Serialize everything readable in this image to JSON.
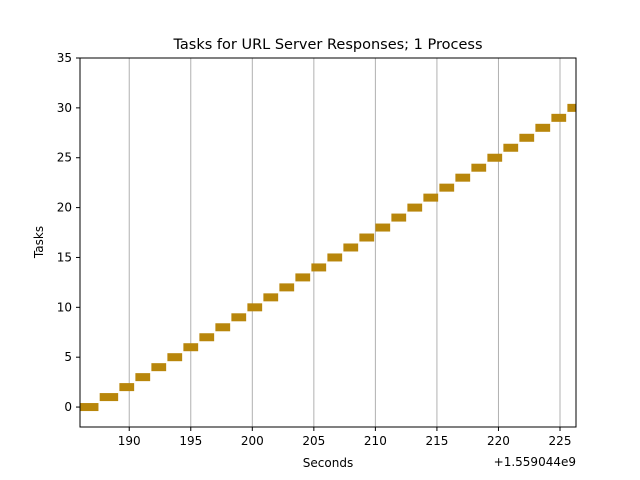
{
  "chart_data": {
    "type": "bar",
    "orientation": "horizontal",
    "title": "Tasks for URL Server Responses; 1 Process",
    "xlabel": "Seconds",
    "ylabel": "Tasks",
    "x_offset_label": "+1.559044e9",
    "xlim": [
      186.0,
      226.3
    ],
    "ylim": [
      -2,
      35
    ],
    "xticks": [
      190,
      195,
      200,
      205,
      210,
      215,
      220,
      225
    ],
    "yticks": [
      0,
      5,
      10,
      15,
      20,
      25,
      30,
      35
    ],
    "grid": "vertical",
    "bar_color": "#b8860b",
    "tasks": [
      {
        "task": 0,
        "start": 186.0,
        "end": 187.5
      },
      {
        "task": 1,
        "start": 187.6,
        "end": 189.1
      },
      {
        "task": 2,
        "start": 189.2,
        "end": 190.4
      },
      {
        "task": 3,
        "start": 190.5,
        "end": 191.7
      },
      {
        "task": 4,
        "start": 191.8,
        "end": 193.0
      },
      {
        "task": 5,
        "start": 193.1,
        "end": 194.3
      },
      {
        "task": 6,
        "start": 194.4,
        "end": 195.6
      },
      {
        "task": 7,
        "start": 195.7,
        "end": 196.9
      },
      {
        "task": 8,
        "start": 197.0,
        "end": 198.2
      },
      {
        "task": 9,
        "start": 198.3,
        "end": 199.5
      },
      {
        "task": 10,
        "start": 199.6,
        "end": 200.8
      },
      {
        "task": 11,
        "start": 200.9,
        "end": 202.1
      },
      {
        "task": 12,
        "start": 202.2,
        "end": 203.4
      },
      {
        "task": 13,
        "start": 203.5,
        "end": 204.7
      },
      {
        "task": 14,
        "start": 204.8,
        "end": 206.0
      },
      {
        "task": 15,
        "start": 206.1,
        "end": 207.3
      },
      {
        "task": 16,
        "start": 207.4,
        "end": 208.6
      },
      {
        "task": 17,
        "start": 208.7,
        "end": 209.9
      },
      {
        "task": 18,
        "start": 210.0,
        "end": 211.2
      },
      {
        "task": 19,
        "start": 211.3,
        "end": 212.5
      },
      {
        "task": 20,
        "start": 212.6,
        "end": 213.8
      },
      {
        "task": 21,
        "start": 213.9,
        "end": 215.1
      },
      {
        "task": 22,
        "start": 215.2,
        "end": 216.4
      },
      {
        "task": 23,
        "start": 216.5,
        "end": 217.7
      },
      {
        "task": 24,
        "start": 217.8,
        "end": 219.0
      },
      {
        "task": 25,
        "start": 219.1,
        "end": 220.3
      },
      {
        "task": 26,
        "start": 220.4,
        "end": 221.6
      },
      {
        "task": 27,
        "start": 221.7,
        "end": 222.9
      },
      {
        "task": 28,
        "start": 223.0,
        "end": 224.2
      },
      {
        "task": 29,
        "start": 224.3,
        "end": 225.5
      },
      {
        "task": 30,
        "start": 225.6,
        "end": 226.3
      }
    ]
  }
}
